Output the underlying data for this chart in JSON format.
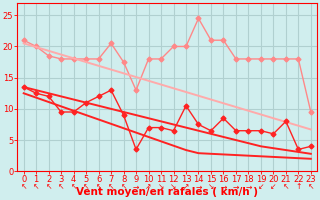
{
  "title": "",
  "xlabel": "Vent moyen/en rafales ( km/h )",
  "ylabel": "",
  "bg_color": "#d0eeee",
  "grid_color": "#b0d0d0",
  "x": [
    0,
    1,
    2,
    3,
    4,
    5,
    6,
    7,
    8,
    9,
    10,
    11,
    12,
    13,
    14,
    15,
    16,
    17,
    18,
    19,
    20,
    21,
    22,
    23
  ],
  "series": [
    {
      "name": "rafales_data",
      "color": "#ff8888",
      "lw": 1.0,
      "marker": "D",
      "ms": 2.5,
      "y": [
        21,
        20,
        18.5,
        18,
        18,
        18,
        18,
        20.5,
        17.5,
        13,
        18,
        18,
        20,
        20,
        24.5,
        21,
        21,
        18,
        18,
        18,
        18,
        18,
        18,
        9.5
      ]
    },
    {
      "name": "trend_rafales",
      "color": "#ffaaaa",
      "lw": 1.4,
      "marker": null,
      "ms": 0,
      "y": [
        20.5,
        19.9,
        19.3,
        18.7,
        18.1,
        17.5,
        16.9,
        16.3,
        15.7,
        15.1,
        14.5,
        13.9,
        13.3,
        12.7,
        12.1,
        11.5,
        10.9,
        10.3,
        9.7,
        9.1,
        8.5,
        7.9,
        7.3,
        6.7
      ]
    },
    {
      "name": "mean_data",
      "color": "#ff2222",
      "lw": 1.0,
      "marker": "D",
      "ms": 2.5,
      "y": [
        13.5,
        12.5,
        12,
        9.5,
        9.5,
        11,
        12,
        13,
        9,
        3.5,
        7,
        7,
        6.5,
        10.5,
        7.5,
        6.5,
        8.5,
        6.5,
        6.5,
        6.5,
        6,
        8,
        3.5,
        4
      ]
    },
    {
      "name": "trend_mean_upper",
      "color": "#ff2222",
      "lw": 1.4,
      "marker": null,
      "ms": 0,
      "y": [
        13.5,
        13.0,
        12.5,
        12.0,
        11.5,
        11.0,
        10.5,
        10.0,
        9.5,
        9.0,
        8.5,
        8.0,
        7.5,
        7.0,
        6.5,
        6.0,
        5.5,
        5.0,
        4.5,
        4.0,
        3.7,
        3.4,
        3.1,
        2.8
      ]
    },
    {
      "name": "trend_mean_lower",
      "color": "#ff2222",
      "lw": 1.4,
      "marker": null,
      "ms": 0,
      "y": [
        12.5,
        11.8,
        11.1,
        10.4,
        9.7,
        9.0,
        8.3,
        7.6,
        6.9,
        6.2,
        5.5,
        4.8,
        4.1,
        3.4,
        2.9,
        2.8,
        2.7,
        2.6,
        2.5,
        2.4,
        2.3,
        2.2,
        2.1,
        2.0
      ]
    }
  ],
  "wind_arrows": [
    "↖",
    "↖",
    "↖",
    "↖",
    "↖",
    "↖",
    "↖",
    "↖",
    "↖",
    "→",
    "↗",
    "↘",
    "↘",
    "↗",
    "→",
    "↘",
    "→",
    "→",
    "→",
    "↙",
    "↙",
    "↖",
    "↑",
    "↖"
  ],
  "xlim": [
    -0.5,
    23.5
  ],
  "ylim": [
    0,
    27
  ],
  "yticks": [
    0,
    5,
    10,
    15,
    20,
    25
  ],
  "xticks": [
    0,
    1,
    2,
    3,
    4,
    5,
    6,
    7,
    8,
    9,
    10,
    11,
    12,
    13,
    14,
    15,
    16,
    17,
    18,
    19,
    20,
    21,
    22,
    23
  ],
  "tick_color": "#ff0000",
  "label_color": "#ff0000",
  "axis_color": "#ff0000",
  "xlabel_fontsize": 7.5,
  "tick_fontsize": 6.0,
  "arrow_fontsize": 5.5
}
